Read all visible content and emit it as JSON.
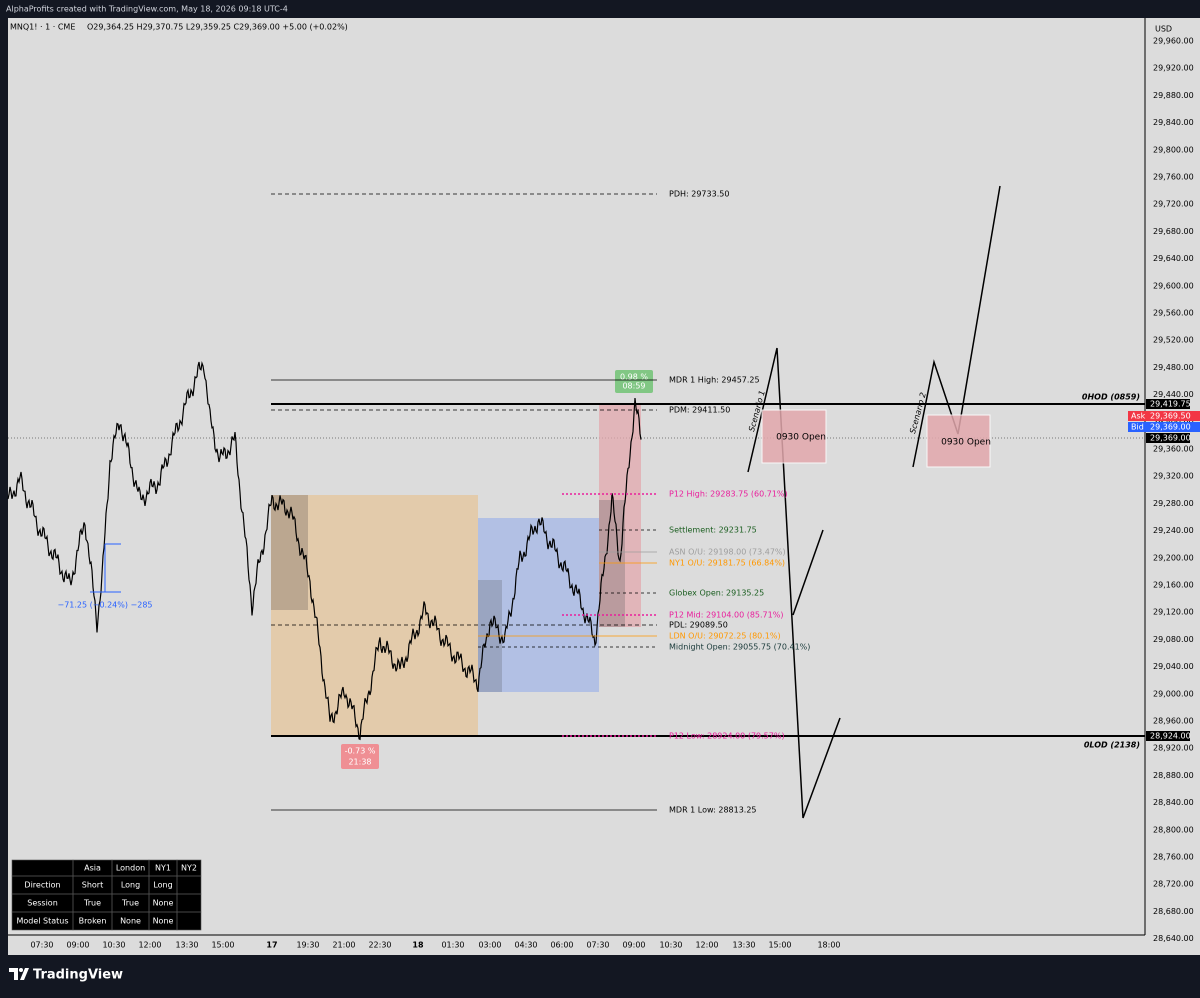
{
  "header": {
    "credit": "AlphaProfits created with TradingView.com, May 18, 2026 09:18 UTC-4",
    "symbol": "MNQ1! · 1 · CME",
    "ohlc": "O29,364.25 H29,370.75 L29,359.25 C29,369.00 +5.00 (+0.02%)"
  },
  "price_axis": {
    "currency": "USD",
    "labels": [
      "29,960.00",
      "29,920.00",
      "29,880.00",
      "29,840.00",
      "29,800.00",
      "29,760.00",
      "29,720.00",
      "29,680.00",
      "29,640.00",
      "29,600.00",
      "29,560.00",
      "29,520.00",
      "29,480.00",
      "29,440.00",
      "29,400.00",
      "29,360.00",
      "29,320.00",
      "29,280.00",
      "29,240.00",
      "29,200.00",
      "29,160.00",
      "29,120.00",
      "29,080.00",
      "29,040.00",
      "29,000.00",
      "28,960.00",
      "28,920.00",
      "28,880.00",
      "28,840.00",
      "28,800.00",
      "28,760.00",
      "28,720.00",
      "28,680.00",
      "28,640.00"
    ]
  },
  "time_axis": {
    "labels": [
      "07:30",
      "09:00",
      "10:30",
      "12:00",
      "13:30",
      "15:00",
      "17",
      "19:30",
      "21:00",
      "22:30",
      "18",
      "01:30",
      "03:00",
      "04:30",
      "06:00",
      "07:30",
      "09:00",
      "10:30",
      "12:00",
      "13:30",
      "15:00",
      "18:00"
    ]
  },
  "levels": [
    {
      "label": "PDH: 29733.50",
      "color": "#000000"
    },
    {
      "label": "MDR 1 High: 29457.25",
      "color": "#000000"
    },
    {
      "label": "PDM: 29411.50",
      "color": "#000000"
    },
    {
      "label": "P12 High: 29283.75 (60.71%)",
      "color": "#e91e9c"
    },
    {
      "label": "Settlement: 29231.75",
      "color": "#1b5e20"
    },
    {
      "label": "ASN O/U: 29198.00 (73.47%)",
      "color": "#9e9e9e"
    },
    {
      "label": "NY1 O/U: 29181.75 (66.84%)",
      "color": "#ff9800"
    },
    {
      "label": "Globex Open: 29135.25",
      "color": "#1b5e20"
    },
    {
      "label": "P12 Mid: 29104.00 (85.71%)",
      "color": "#e91e9c"
    },
    {
      "label": "PDL: 29089.50",
      "color": "#000000"
    },
    {
      "label": "LDN O/U: 29072.25 (80.1%)",
      "color": "#ff9800"
    },
    {
      "label": "Midnight Open: 29055.75 (70.41%)",
      "color": "#1a3a3a"
    },
    {
      "label": "P12 Low: 28924.00 (79.57%)",
      "color": "#e91e9c"
    },
    {
      "label": "MDR 1 Low: 28813.25",
      "color": "#000000"
    }
  ],
  "tags": [
    {
      "text": "29,419.75",
      "color": "#000000"
    },
    {
      "name": "Ask",
      "text": "29,369.50",
      "color": "#f23645"
    },
    {
      "name": "Bid",
      "text": "29,369.00",
      "color": "#2962ff"
    },
    {
      "text": "29,369.00",
      "color": "#000000"
    },
    {
      "text": "28,924.00",
      "color": "#000000"
    }
  ],
  "annotations": {
    "ohod": "0HOD (0859)",
    "olod": "0LOD (2138)",
    "high_pct": "0.98 %",
    "high_time": "08:59",
    "low_pct": "-0.73 %",
    "low_time": "21:38",
    "measure": "−71.25 (−0.24%) −285",
    "open_1": "0930 Open",
    "open_2": "0930 Open",
    "scenario_1": "Scenario 1",
    "scenario_2": "Scenario 2"
  },
  "table": {
    "header": [
      "Asia",
      "London",
      "NY1",
      "NY2"
    ],
    "rows": [
      [
        "Direction",
        "Short",
        "Long",
        "Long"
      ],
      [
        "Session",
        "True",
        "True",
        "None"
      ],
      [
        "Model Status",
        "Broken",
        "None",
        "None"
      ]
    ]
  },
  "footer": {
    "brand": "TradingView"
  }
}
